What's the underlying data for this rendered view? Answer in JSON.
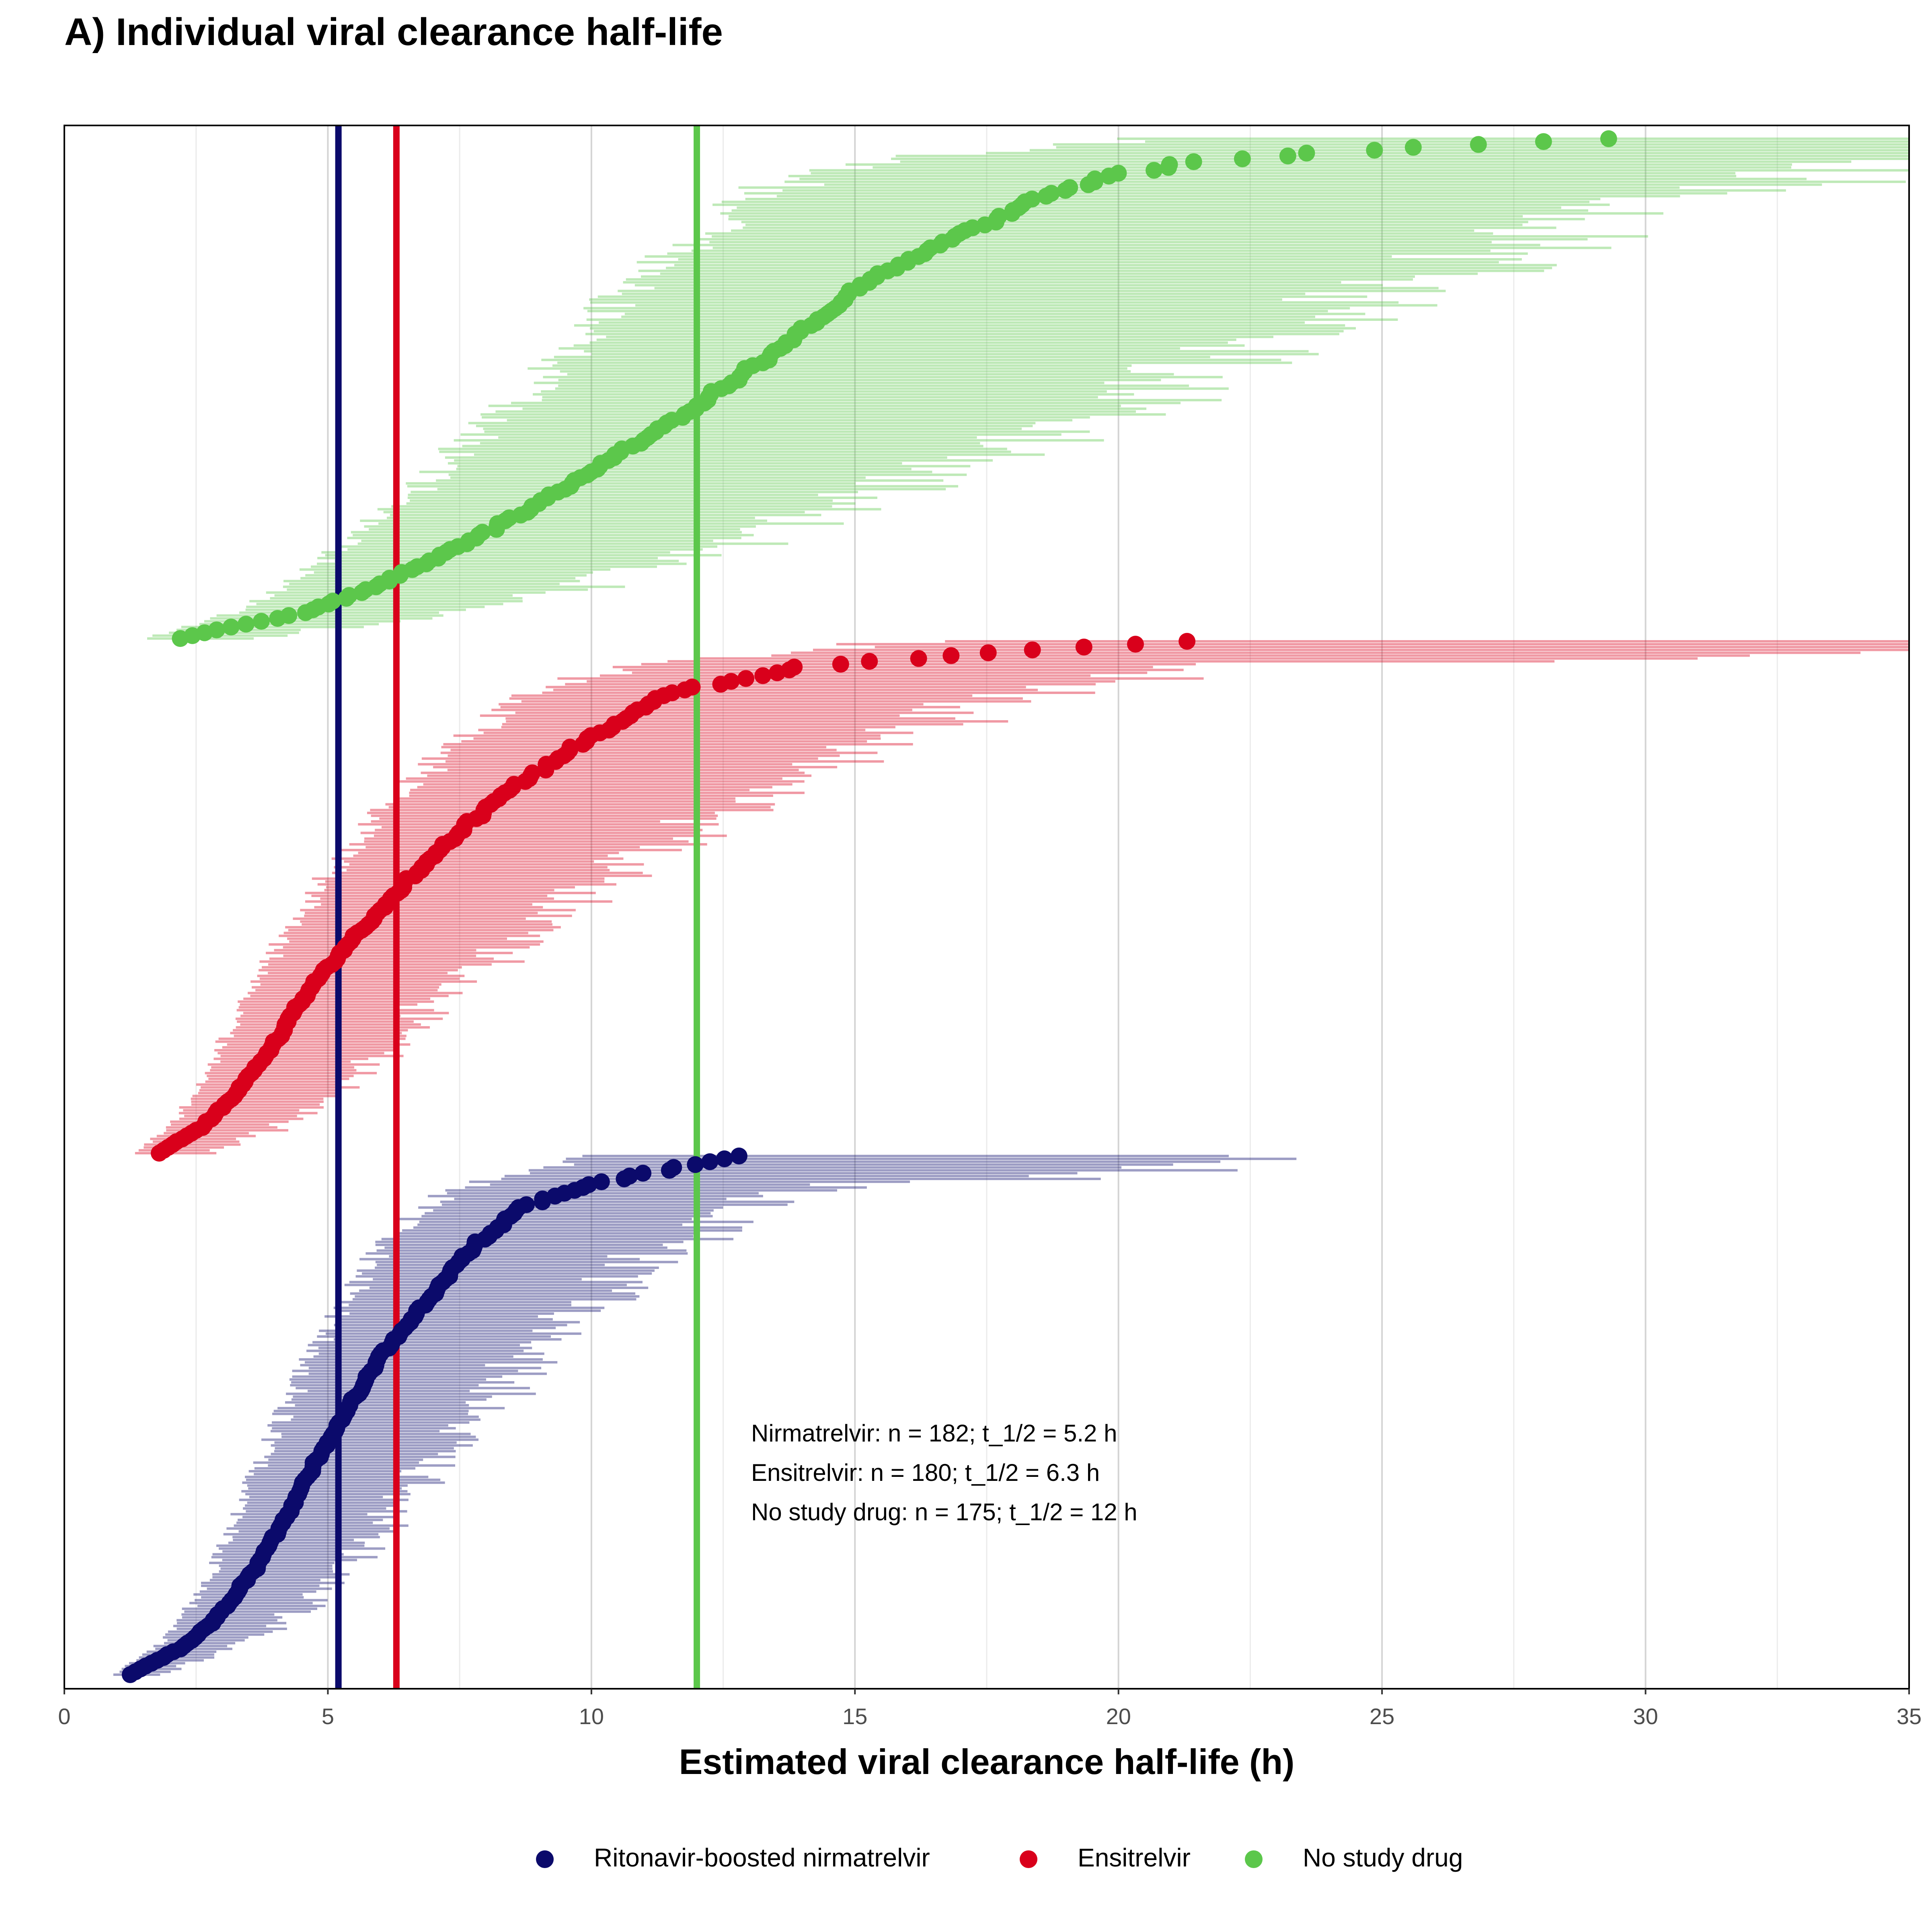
{
  "chart_data": {
    "type": "scatter",
    "title": "A) Individual viral clearance half-life",
    "xlabel": "Estimated viral clearance half-life (h)",
    "ylabel": "",
    "xlim": [
      0,
      35
    ],
    "x_ticks": [
      0,
      5,
      10,
      15,
      20,
      25,
      30,
      35
    ],
    "x_tick_labels": [
      "0",
      "5",
      "10",
      "15",
      "20",
      "25",
      "30",
      "35"
    ],
    "grid": {
      "vertical_major": true,
      "vertical_minor": true,
      "horizontal": false
    },
    "legend": {
      "position": "bottom"
    },
    "annotation_lines": [
      "Nirmatrelvir: n = 182; t_1/2 = 5.2 h",
      "Ensitrelvir: n = 180; t_1/2 = 6.3 h",
      "No study drug: n = 175; t_1/2 = 12 h"
    ],
    "series": [
      {
        "name": "Ritonavir-boosted nirmatrelvir",
        "color": "#0b0a6b",
        "n": 182,
        "median_half_life": 5.2,
        "quantiles": [
          [
            0,
            1.25
          ],
          [
            0.02,
            1.6
          ],
          [
            0.05,
            2.2
          ],
          [
            0.1,
            2.8
          ],
          [
            0.2,
            3.6
          ],
          [
            0.3,
            4.2
          ],
          [
            0.4,
            4.7
          ],
          [
            0.5,
            5.3
          ],
          [
            0.6,
            5.9
          ],
          [
            0.7,
            6.7
          ],
          [
            0.8,
            7.5
          ],
          [
            0.9,
            8.6
          ],
          [
            0.95,
            10.2
          ],
          [
            0.98,
            11.8
          ],
          [
            1,
            12.8
          ]
        ],
        "ci_ratio_low": 0.82,
        "ci_ratio_high": 1.35
      },
      {
        "name": "Ensitrelvir",
        "color": "#d9001b",
        "n": 180,
        "median_half_life": 6.3,
        "quantiles": [
          [
            0,
            1.8
          ],
          [
            0.02,
            2.1
          ],
          [
            0.05,
            2.6
          ],
          [
            0.1,
            3.1
          ],
          [
            0.2,
            3.9
          ],
          [
            0.3,
            4.5
          ],
          [
            0.4,
            5.3
          ],
          [
            0.5,
            6.2
          ],
          [
            0.6,
            7.2
          ],
          [
            0.7,
            8.3
          ],
          [
            0.8,
            9.8
          ],
          [
            0.9,
            11.5
          ],
          [
            0.95,
            14.0
          ],
          [
            0.98,
            17.8
          ],
          [
            1,
            21.3
          ]
        ],
        "ci_ratio_low": 0.8,
        "ci_ratio_high": 1.45
      },
      {
        "name": "No study drug",
        "color": "#5cc74b",
        "n": 175,
        "median_half_life": 12,
        "quantiles": [
          [
            0,
            2.2
          ],
          [
            0.02,
            3.0
          ],
          [
            0.05,
            4.5
          ],
          [
            0.1,
            5.8
          ],
          [
            0.2,
            7.8
          ],
          [
            0.3,
            9.5
          ],
          [
            0.4,
            11.0
          ],
          [
            0.5,
            12.5
          ],
          [
            0.6,
            13.8
          ],
          [
            0.7,
            15.0
          ],
          [
            0.8,
            16.8
          ],
          [
            0.9,
            19.0
          ],
          [
            0.95,
            21.0
          ],
          [
            0.98,
            25.0
          ],
          [
            1,
            29.3
          ]
        ],
        "ci_ratio_low": 0.75,
        "ci_ratio_high": 1.55
      }
    ]
  }
}
